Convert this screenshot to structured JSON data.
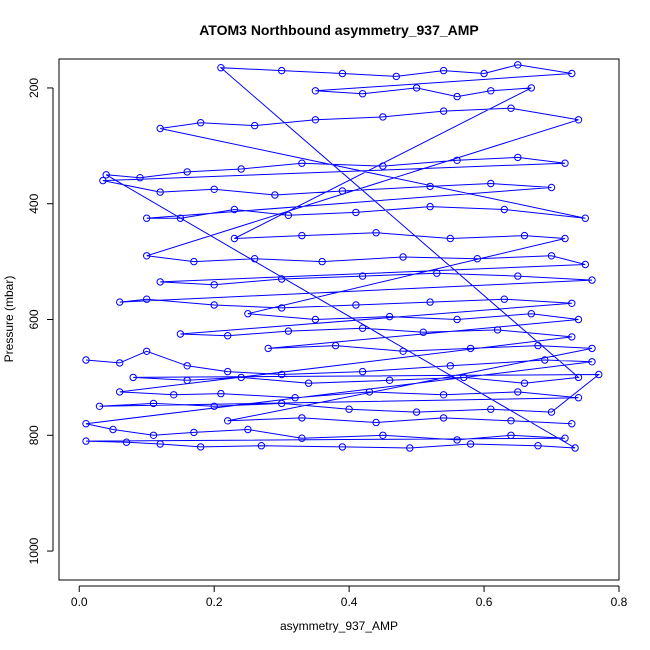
{
  "chart_data": {
    "type": "scatter",
    "title": "ATOM3 Northbound asymmetry_937_AMP",
    "xlabel": "asymmetry_937_AMP",
    "ylabel": "Pressure (mbar)",
    "xlim": [
      -0.03,
      0.8
    ],
    "ylim": [
      1050,
      150
    ],
    "y_reversed": true,
    "x_ticks": [
      0.0,
      0.2,
      0.4,
      0.6,
      0.8
    ],
    "x_tick_labels": [
      "0.0",
      "0.2",
      "0.4",
      "0.6",
      "0.8"
    ],
    "y_ticks": [
      200,
      400,
      600,
      800,
      1000
    ],
    "y_tick_labels": [
      "200",
      "400",
      "600",
      "800",
      "1000"
    ],
    "grid": false,
    "legend": "none",
    "series": [
      {
        "style": "points connected by lines (open circles)",
        "color": "#0000ff",
        "points": [
          [
            0.01,
            670
          ],
          [
            0.06,
            675
          ],
          [
            0.1,
            655
          ],
          [
            0.16,
            680
          ],
          [
            0.22,
            690
          ],
          [
            0.3,
            695
          ],
          [
            0.42,
            690
          ],
          [
            0.55,
            680
          ],
          [
            0.69,
            670
          ],
          [
            0.76,
            673
          ],
          [
            0.01,
            780
          ],
          [
            0.05,
            790
          ],
          [
            0.11,
            800
          ],
          [
            0.17,
            795
          ],
          [
            0.25,
            790
          ],
          [
            0.33,
            805
          ],
          [
            0.45,
            800
          ],
          [
            0.56,
            808
          ],
          [
            0.64,
            800
          ],
          [
            0.72,
            805
          ],
          [
            0.01,
            810
          ],
          [
            0.07,
            812
          ],
          [
            0.12,
            815
          ],
          [
            0.18,
            820
          ],
          [
            0.27,
            818
          ],
          [
            0.39,
            820
          ],
          [
            0.49,
            822
          ],
          [
            0.58,
            815
          ],
          [
            0.68,
            818
          ],
          [
            0.735,
            822
          ],
          [
            0.04,
            350
          ],
          [
            0.09,
            355
          ],
          [
            0.16,
            345
          ],
          [
            0.24,
            340
          ],
          [
            0.33,
            330
          ],
          [
            0.45,
            335
          ],
          [
            0.56,
            325
          ],
          [
            0.65,
            320
          ],
          [
            0.72,
            330
          ],
          [
            0.035,
            360
          ],
          [
            0.12,
            380
          ],
          [
            0.2,
            375
          ],
          [
            0.29,
            385
          ],
          [
            0.39,
            378
          ],
          [
            0.52,
            370
          ],
          [
            0.61,
            365
          ],
          [
            0.7,
            372
          ],
          [
            0.1,
            425
          ],
          [
            0.15,
            425
          ],
          [
            0.23,
            410
          ],
          [
            0.31,
            420
          ],
          [
            0.41,
            415
          ],
          [
            0.52,
            405
          ],
          [
            0.63,
            410
          ],
          [
            0.75,
            425
          ],
          [
            0.12,
            270
          ],
          [
            0.18,
            260
          ],
          [
            0.26,
            265
          ],
          [
            0.35,
            255
          ],
          [
            0.45,
            250
          ],
          [
            0.54,
            240
          ],
          [
            0.64,
            235
          ],
          [
            0.74,
            255
          ],
          [
            0.1,
            490
          ],
          [
            0.17,
            500
          ],
          [
            0.26,
            495
          ],
          [
            0.36,
            500
          ],
          [
            0.48,
            492
          ],
          [
            0.59,
            495
          ],
          [
            0.7,
            490
          ],
          [
            0.75,
            505
          ],
          [
            0.12,
            535
          ],
          [
            0.2,
            540
          ],
          [
            0.3,
            530
          ],
          [
            0.42,
            525
          ],
          [
            0.53,
            520
          ],
          [
            0.65,
            525
          ],
          [
            0.76,
            532
          ],
          [
            0.06,
            570
          ],
          [
            0.1,
            565
          ],
          [
            0.2,
            575
          ],
          [
            0.3,
            580
          ],
          [
            0.41,
            575
          ],
          [
            0.52,
            570
          ],
          [
            0.63,
            565
          ],
          [
            0.73,
            572
          ],
          [
            0.15,
            625
          ],
          [
            0.22,
            628
          ],
          [
            0.31,
            620
          ],
          [
            0.42,
            615
          ],
          [
            0.51,
            622
          ],
          [
            0.62,
            618
          ],
          [
            0.73,
            630
          ],
          [
            0.06,
            725
          ],
          [
            0.14,
            730
          ],
          [
            0.21,
            728
          ],
          [
            0.32,
            735
          ],
          [
            0.43,
            725
          ],
          [
            0.54,
            730
          ],
          [
            0.65,
            725
          ],
          [
            0.74,
            735
          ],
          [
            0.03,
            750
          ],
          [
            0.11,
            745
          ],
          [
            0.2,
            750
          ],
          [
            0.3,
            745
          ],
          [
            0.4,
            755
          ],
          [
            0.5,
            760
          ],
          [
            0.61,
            755
          ],
          [
            0.7,
            760
          ],
          [
            0.77,
            695
          ],
          [
            0.08,
            700
          ],
          [
            0.16,
            705
          ],
          [
            0.24,
            700
          ],
          [
            0.34,
            710
          ],
          [
            0.46,
            705
          ],
          [
            0.57,
            700
          ],
          [
            0.66,
            710
          ],
          [
            0.74,
            700
          ],
          [
            0.21,
            165
          ],
          [
            0.3,
            170
          ],
          [
            0.39,
            175
          ],
          [
            0.47,
            180
          ],
          [
            0.54,
            170
          ],
          [
            0.6,
            175
          ],
          [
            0.65,
            160
          ],
          [
            0.73,
            175
          ],
          [
            0.35,
            205
          ],
          [
            0.42,
            210
          ],
          [
            0.5,
            200
          ],
          [
            0.56,
            215
          ],
          [
            0.61,
            205
          ],
          [
            0.67,
            200
          ],
          [
            0.23,
            460
          ],
          [
            0.33,
            455
          ],
          [
            0.44,
            450
          ],
          [
            0.55,
            460
          ],
          [
            0.66,
            455
          ],
          [
            0.72,
            460
          ],
          [
            0.25,
            590
          ],
          [
            0.35,
            600
          ],
          [
            0.46,
            595
          ],
          [
            0.56,
            600
          ],
          [
            0.67,
            590
          ],
          [
            0.74,
            600
          ],
          [
            0.28,
            650
          ],
          [
            0.38,
            645
          ],
          [
            0.48,
            655
          ],
          [
            0.58,
            650
          ],
          [
            0.68,
            645
          ],
          [
            0.76,
            650
          ],
          [
            0.22,
            775
          ],
          [
            0.33,
            770
          ],
          [
            0.44,
            778
          ],
          [
            0.54,
            770
          ],
          [
            0.64,
            775
          ],
          [
            0.73,
            780
          ]
        ]
      }
    ]
  }
}
